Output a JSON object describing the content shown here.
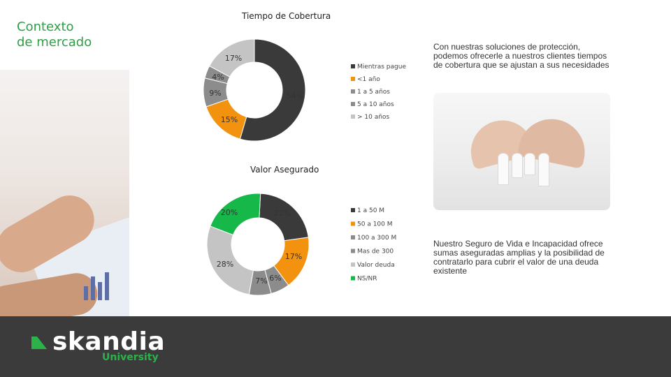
{
  "section_title_line1": "Contexto",
  "section_title_line2": "de mercado",
  "logo": {
    "brand": "skandia",
    "sub": "University",
    "accent": "#2bb34a"
  },
  "footer_color": "#3b3b3b",
  "right_text_top": [
    "Con nuestras soluciones de protección,",
    "podemos ofrecerle a nuestros clientes tiempos",
    "de cobertura que se ajustan a sus necesidades"
  ],
  "right_text_bottom": [
    "Nuestro Seguro de Vida e Incapacidad ofrece",
    "sumas aseguradas amplias y la posibilidad de",
    "contratarlo para cubrir el valor de una deuda",
    "existente"
  ],
  "chart_data": [
    {
      "type": "pie",
      "subtype": "donut",
      "title": "Tiempo de Cobertura",
      "categories": [
        "Mientras pague",
        "<1 año",
        "1 a 5 años",
        "5 a 10 años",
        "> 10 años"
      ],
      "values": [
        54,
        15,
        9,
        4,
        17
      ],
      "slice_order": [
        "Mientras pague",
        "<1 año",
        "1 a 5 años",
        "5 a 10 años",
        "> 10 años"
      ],
      "slice_labels": [
        "54%",
        "15%",
        "9%",
        "4%",
        "17%"
      ],
      "colors": [
        "#3a3a3a",
        "#f2920f",
        "#8c8c8c",
        "#8c8c8c",
        "#c4c4c4"
      ],
      "legend_position": "right",
      "legend_colors": [
        "#3a3a3a",
        "#f2920f",
        "#8c8c8c",
        "#8c8c8c",
        "#c4c4c4"
      ]
    },
    {
      "type": "pie",
      "subtype": "donut",
      "title": "Valor Asegurado",
      "categories": [
        "1 a 50 M",
        "50 a 100 M",
        "100 a 300 M",
        "Mas de 300",
        "Valor deuda",
        "NS/NR"
      ],
      "values": [
        22,
        17,
        6,
        7,
        28,
        20
      ],
      "slice_labels": [
        "22%",
        "17%",
        "6%",
        "7%",
        "28%",
        "20%"
      ],
      "colors": [
        "#3a3a3a",
        "#f2920f",
        "#8c8c8c",
        "#8c8c8c",
        "#c4c4c4",
        "#17b84a"
      ],
      "legend_position": "right",
      "legend_colors": [
        "#3a3a3a",
        "#f2920f",
        "#8c8c8c",
        "#8c8c8c",
        "#c4c4c4",
        "#17b84a"
      ]
    }
  ]
}
